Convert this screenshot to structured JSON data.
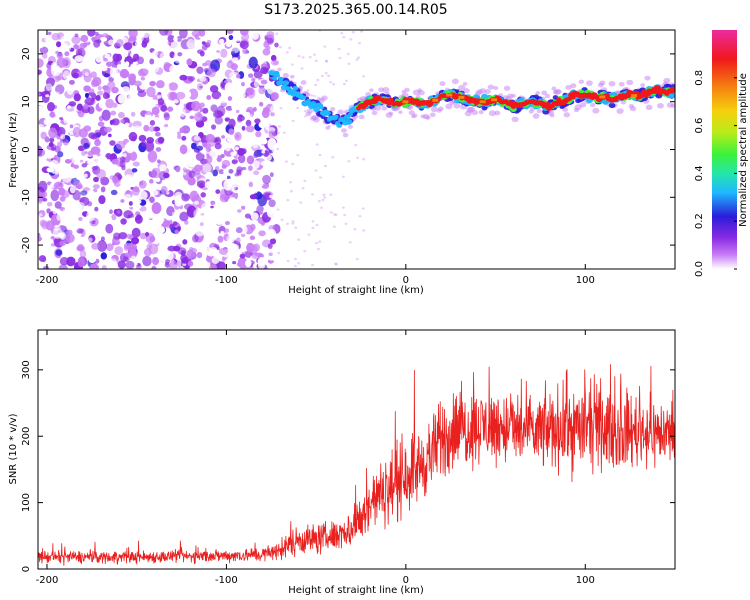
{
  "title": "S173.2025.365.00.14.R05",
  "colors": {
    "snr_line": "#e8211f",
    "axis": "#000000",
    "background": "#ffffff"
  },
  "chart_data": [
    {
      "type": "heatmap",
      "name": "spectrogram",
      "xlabel": "Height of straight line (km)",
      "ylabel": "Frequency (Hz)",
      "xlim": [
        -205,
        150
      ],
      "ylim": [
        -25,
        25
      ],
      "xticks": [
        -200,
        -100,
        0,
        100
      ],
      "yticks": [
        -20,
        -10,
        0,
        10,
        20
      ],
      "colorbar": {
        "label": "Normalized spectral amplitude",
        "range": [
          0,
          1
        ],
        "ticks": [
          0.0,
          0.2,
          0.4,
          0.6,
          0.8
        ],
        "colormap": [
          "#ffffff",
          "#c87cf6",
          "#8a2be2",
          "#2a1cd8",
          "#1fb8ff",
          "#23e6a8",
          "#3cf23c",
          "#b8ec1a",
          "#f5d10d",
          "#f5820f",
          "#f0171d",
          "#ec2ba0"
        ]
      },
      "signal_track": {
        "x": [
          -75,
          -65,
          -58,
          -50,
          -43,
          -37,
          -33,
          -30,
          -25,
          -20,
          -15,
          -10,
          -5,
          0,
          5,
          10,
          15,
          20,
          25,
          30,
          35,
          40,
          45,
          50,
          55,
          60,
          65,
          70,
          75,
          80,
          85,
          90,
          95,
          100,
          105,
          110,
          115,
          120,
          125,
          130,
          135,
          140,
          145,
          150
        ],
        "y": [
          16,
          13,
          11,
          9,
          7,
          5.5,
          6,
          7.5,
          9,
          10,
          10.5,
          10,
          9.5,
          10,
          10,
          9.5,
          10,
          11,
          11.5,
          11,
          10.5,
          10,
          10,
          10.5,
          10,
          9,
          9.5,
          10,
          9.5,
          9,
          10,
          10.5,
          11.5,
          11.5,
          11,
          11,
          10.5,
          11,
          11.5,
          11,
          12,
          12.5,
          12,
          12
        ]
      },
      "noise_region_x": [
        -205,
        -72
      ],
      "noise_density": 0.9
    },
    {
      "type": "line",
      "name": "snr",
      "xlabel": "Height of straight line (km)",
      "ylabel": "SNR (10 * v/v)",
      "xlim": [
        -205,
        150
      ],
      "ylim": [
        0,
        360
      ],
      "xticks": [
        -200,
        -100,
        0,
        100
      ],
      "yticks": [
        0,
        100,
        200,
        300
      ],
      "envelope": {
        "x": [
          -205,
          -150,
          -100,
          -80,
          -70,
          -60,
          -50,
          -40,
          -30,
          -25,
          -20,
          -15,
          -10,
          -5,
          0,
          5,
          10,
          15,
          20,
          25,
          30,
          40,
          50,
          60,
          70,
          80,
          90,
          95,
          100,
          110,
          120,
          130,
          140,
          150
        ],
        "mean": [
          18,
          18,
          20,
          22,
          28,
          45,
          45,
          50,
          60,
          75,
          100,
          110,
          120,
          130,
          145,
          150,
          160,
          175,
          195,
          205,
          210,
          215,
          215,
          210,
          205,
          210,
          215,
          210,
          215,
          210,
          205,
          210,
          205,
          205
        ],
        "spread": [
          10,
          10,
          10,
          12,
          15,
          25,
          25,
          25,
          30,
          40,
          50,
          50,
          55,
          60,
          65,
          60,
          60,
          60,
          65,
          70,
          65,
          60,
          60,
          60,
          60,
          65,
          70,
          75,
          70,
          60,
          60,
          60,
          55,
          55
        ]
      },
      "sample_count": 1800
    }
  ]
}
